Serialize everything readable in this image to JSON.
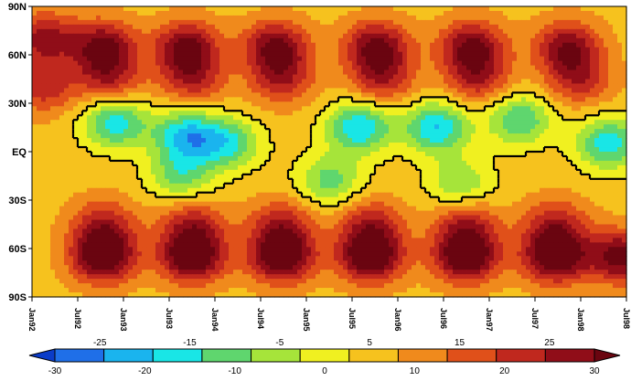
{
  "chart_data": {
    "type": "heatmap",
    "title": "",
    "xlabel": "",
    "ylabel": "",
    "y_ticks": [
      "90N",
      "60N",
      "30N",
      "EQ",
      "30S",
      "60S",
      "90S"
    ],
    "y_values": [
      90,
      60,
      30,
      0,
      -30,
      -60,
      -90
    ],
    "x_ticks": [
      "Jan92",
      "Jul92",
      "Jan93",
      "Jul93",
      "Jan94",
      "Jul94",
      "Jan95",
      "Jul95",
      "Jan96",
      "Jul96",
      "Jan97",
      "Jul97",
      "Jan98",
      "Jul98"
    ],
    "x_range": [
      "Jan92",
      "Jul98"
    ],
    "colorbar": {
      "levels_lower": [
        -30,
        -20,
        -10,
        0,
        10,
        20,
        30
      ],
      "levels_upper": [
        -25,
        -15,
        -5,
        5,
        15,
        25
      ],
      "colors": [
        "#0b3cc8",
        "#1f6fe8",
        "#1ab4ee",
        "#19e6e6",
        "#5fd66e",
        "#a6e43a",
        "#f0f020",
        "#f6c21e",
        "#f08a1c",
        "#e0501a",
        "#c0281e",
        "#900d18",
        "#6a0510"
      ],
      "extend": "both"
    },
    "features": [
      {
        "t": 0.02,
        "lat": 70,
        "v": 22
      },
      {
        "t": 0.02,
        "lat": 40,
        "v": 18
      },
      {
        "t": 0.12,
        "lat": 65,
        "v": 26
      },
      {
        "t": 0.13,
        "lat": 45,
        "v": 18
      },
      {
        "t": 0.26,
        "lat": 65,
        "v": 26
      },
      {
        "t": 0.27,
        "lat": 45,
        "v": 18
      },
      {
        "t": 0.41,
        "lat": 65,
        "v": 26
      },
      {
        "t": 0.42,
        "lat": 45,
        "v": 18
      },
      {
        "t": 0.58,
        "lat": 65,
        "v": 26
      },
      {
        "t": 0.59,
        "lat": 45,
        "v": 18
      },
      {
        "t": 0.74,
        "lat": 65,
        "v": 26
      },
      {
        "t": 0.75,
        "lat": 45,
        "v": 18
      },
      {
        "t": 0.9,
        "lat": 65,
        "v": 24
      },
      {
        "t": 0.92,
        "lat": 45,
        "v": 18
      },
      {
        "t": 0.12,
        "lat": -65,
        "v": 32
      },
      {
        "t": 0.12,
        "lat": -45,
        "v": 18
      },
      {
        "t": 0.27,
        "lat": -65,
        "v": 32
      },
      {
        "t": 0.27,
        "lat": -45,
        "v": 18
      },
      {
        "t": 0.42,
        "lat": -65,
        "v": 32
      },
      {
        "t": 0.42,
        "lat": -45,
        "v": 18
      },
      {
        "t": 0.57,
        "lat": -65,
        "v": 32
      },
      {
        "t": 0.57,
        "lat": -45,
        "v": 18
      },
      {
        "t": 0.73,
        "lat": -65,
        "v": 32
      },
      {
        "t": 0.73,
        "lat": -45,
        "v": 18
      },
      {
        "t": 0.88,
        "lat": -65,
        "v": 32
      },
      {
        "t": 0.88,
        "lat": -45,
        "v": 18
      },
      {
        "t": 0.99,
        "lat": -65,
        "v": 28
      },
      {
        "t": 0.14,
        "lat": 18,
        "v": -18
      },
      {
        "t": 0.26,
        "lat": 10,
        "v": -20
      },
      {
        "t": 0.33,
        "lat": 5,
        "v": -15
      },
      {
        "t": 0.55,
        "lat": 15,
        "v": -20
      },
      {
        "t": 0.68,
        "lat": 15,
        "v": -20
      },
      {
        "t": 0.82,
        "lat": 20,
        "v": -15
      },
      {
        "t": 0.97,
        "lat": 5,
        "v": -18
      },
      {
        "t": 0.25,
        "lat": -15,
        "v": -12
      },
      {
        "t": 0.5,
        "lat": -18,
        "v": -12
      },
      {
        "t": 0.72,
        "lat": -20,
        "v": -10
      }
    ]
  }
}
